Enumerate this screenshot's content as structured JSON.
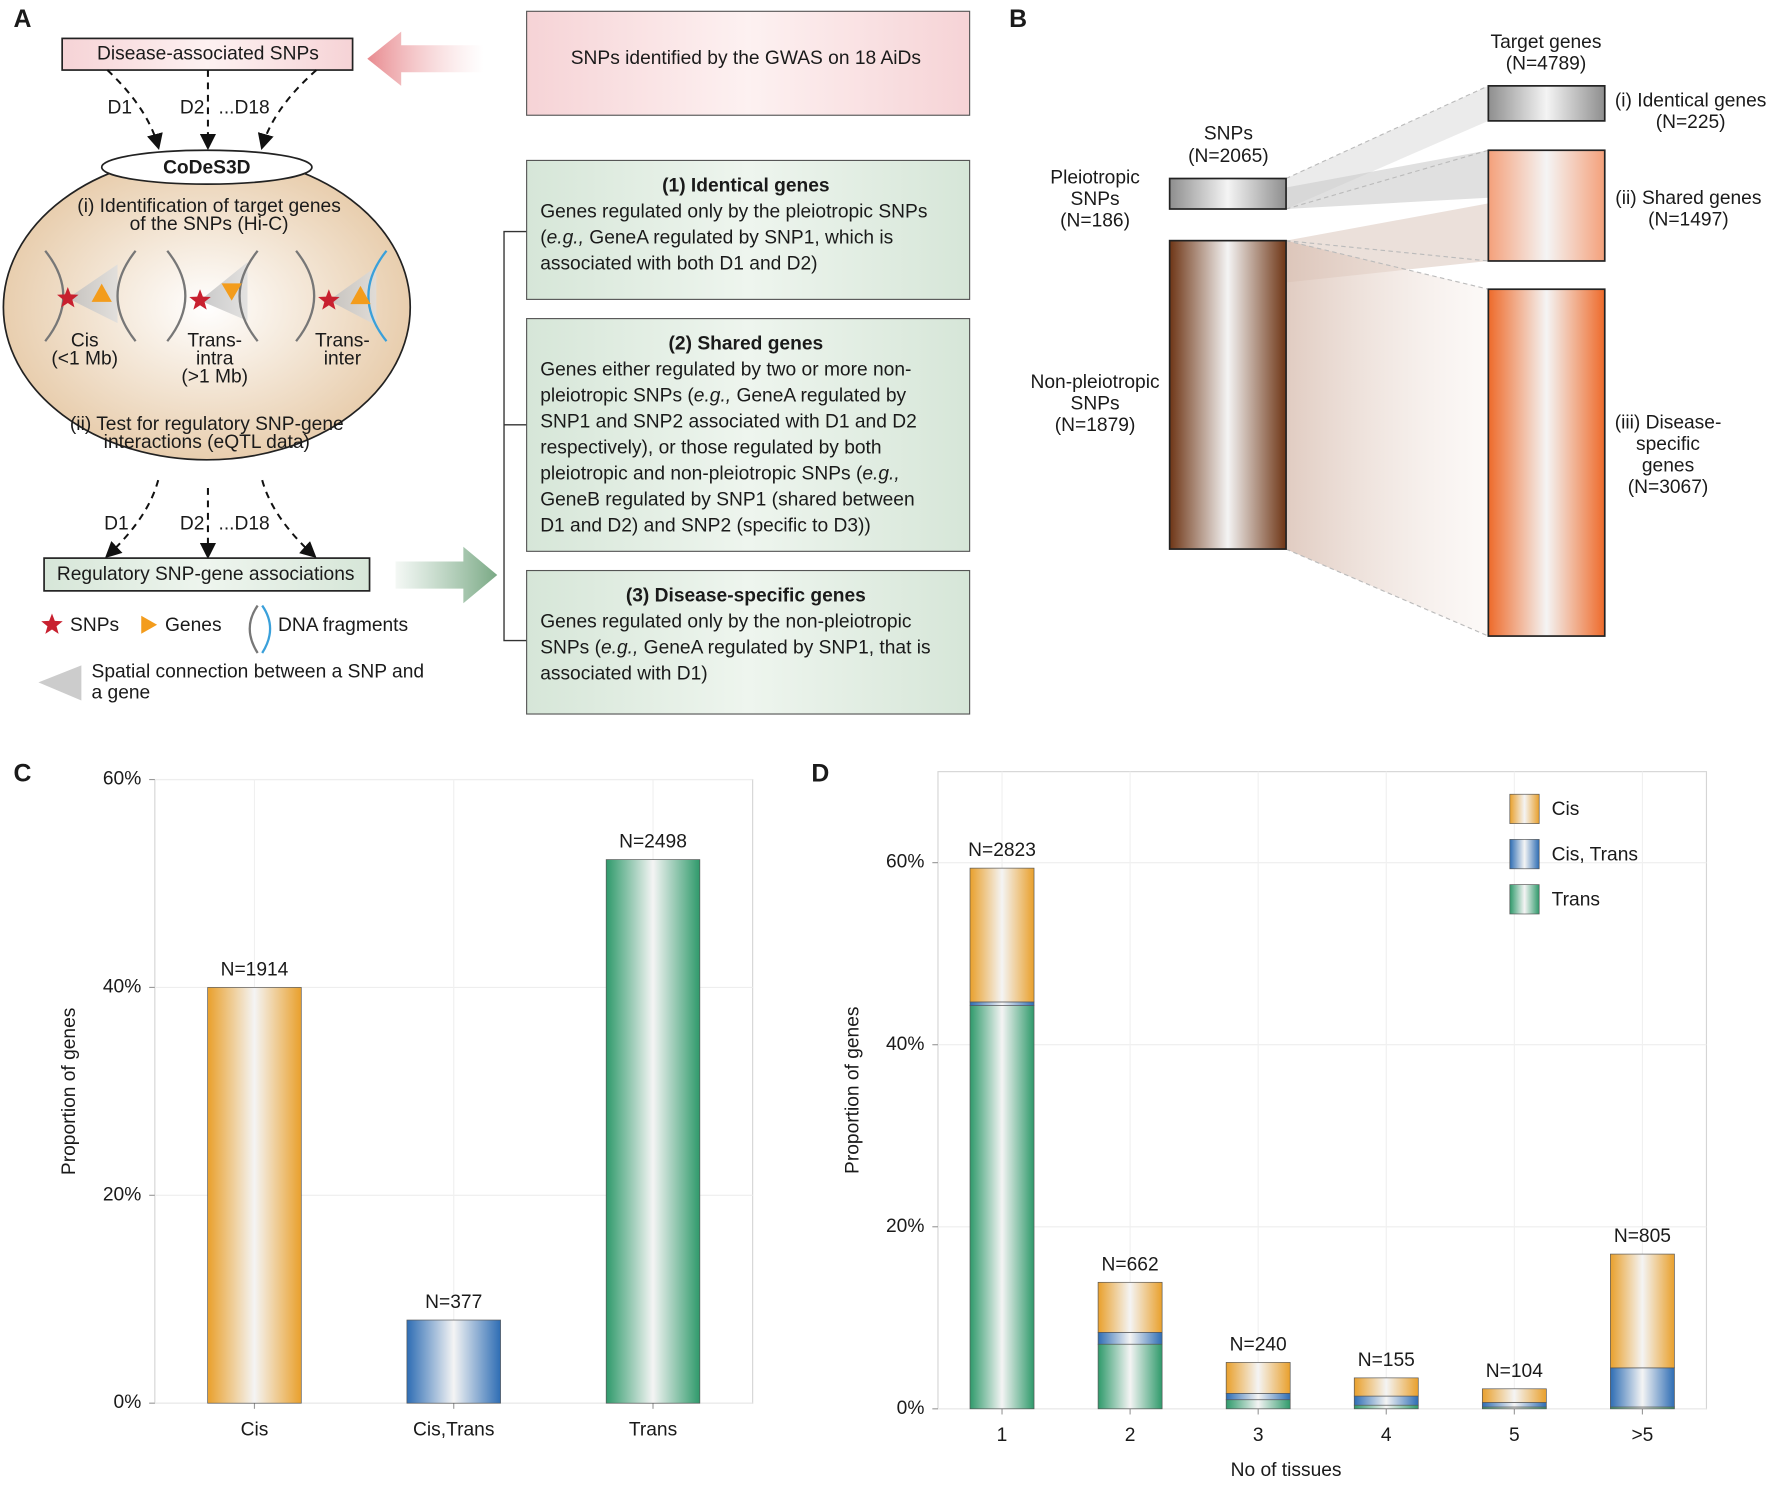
{
  "panel_labels": [
    "A",
    "B",
    "C",
    "D"
  ],
  "panel_a": {
    "disease_snps": "Disease-associated SNPs",
    "gwas": "SNPs identified by the GWAS on 18 AiDs",
    "top_arrows": [
      "D1",
      "D2",
      "...D18"
    ],
    "codes3d": "CoDeS3D",
    "step_i": [
      "(i) Identification of target genes",
      "of the SNPs (Hi-C)"
    ],
    "cis": [
      "Cis",
      "(<1 Mb)"
    ],
    "trans_intra": [
      "Trans-",
      "intra",
      "(>1 Mb)"
    ],
    "trans_inter": [
      "Trans-",
      "inter"
    ],
    "step_ii": [
      "(ii) Test for regulatory SNP-gene",
      "interactions (eQTL data)"
    ],
    "bottom_arrows": [
      "D1",
      "D2",
      "...D18"
    ],
    "associations": "Regulatory SNP-gene associations",
    "legend": {
      "snps": "SNPs",
      "genes": "Genes",
      "fragments": "DNA fragments",
      "connection": [
        "Spatial connection between a SNP and",
        "a gene"
      ]
    },
    "boxes": [
      {
        "title": "(1) Identical genes",
        "lines": [
          [
            "Genes regulated only by the pleiotropic SNPs"
          ],
          [
            "(",
            "e.g.,",
            " GeneA regulated by SNP1, which is"
          ],
          [
            "associated with both D1 and D2)"
          ]
        ]
      },
      {
        "title": "(2) Shared genes",
        "lines": [
          [
            "Genes either regulated by two or more non-"
          ],
          [
            "pleiotropic SNPs (",
            "e.g.,",
            " GeneA regulated by"
          ],
          [
            "SNP1 and SNP2 associated with D1 and D2"
          ],
          [
            "respectively), or those regulated by both"
          ],
          [
            "pleiotropic and non-pleiotropic SNPs (",
            "e.g.,"
          ],
          [
            "GeneB regulated by SNP1 (shared between"
          ],
          [
            "D1 and D2) and SNP2 (specific to D3))"
          ]
        ]
      },
      {
        "title": "(3) Disease-specific genes",
        "lines": [
          [
            "Genes regulated only by the non-pleiotropic"
          ],
          [
            "SNPs (",
            "e.g.,",
            " GeneA regulated by SNP1, that is"
          ],
          [
            "associated with D1)"
          ]
        ]
      }
    ]
  },
  "panel_b": {
    "snps": [
      "SNPs",
      "(N=2065)"
    ],
    "pleiotropic": [
      "Pleiotropic",
      "SNPs",
      "(N=186)"
    ],
    "non_pleiotropic": [
      "Non-pleiotropic",
      "SNPs",
      "(N=1879)"
    ],
    "targets": [
      "Target genes",
      "(N=4789)"
    ],
    "identical": [
      "(i) Identical genes",
      "(N=225)"
    ],
    "shared": [
      "(ii) Shared genes",
      "(N=1497)"
    ],
    "specific": [
      "(iii) Disease-",
      "specific",
      "genes",
      "(N=3067)"
    ]
  },
  "chart_data": [
    {
      "type": "bar",
      "ylabel": "Proportion of genes",
      "categories": [
        "Cis",
        "Cis,Trans",
        "Trans"
      ],
      "values": [
        40,
        8,
        52.3
      ],
      "annotations": [
        "N=1914",
        "N=377",
        "N=2498"
      ],
      "colors": [
        "#e9a02c",
        "#2e6db4",
        "#2f9a6b"
      ],
      "ylim": [
        0,
        60
      ],
      "yticks": [
        {
          "value": 0,
          "label": "0%"
        },
        {
          "value": 20,
          "label": "20%"
        },
        {
          "value": 40,
          "label": "40%"
        },
        {
          "value": 60,
          "label": "60%"
        }
      ],
      "grid": true
    },
    {
      "type": "stacked_bar",
      "ylabel": "Proportion of genes",
      "xlabel": "No of tissues",
      "categories": [
        "1",
        "2",
        "3",
        "4",
        "5",
        ">5"
      ],
      "series": [
        {
          "name": "Cis",
          "color": "#e9a02c",
          "values": [
            14.7,
            5.5,
            3.4,
            2.0,
            1.5,
            12.5
          ]
        },
        {
          "name": "Cis, Trans",
          "color": "#2e6db4",
          "values": [
            0.4,
            1.3,
            0.7,
            1.0,
            0.5,
            4.3
          ]
        },
        {
          "name": "Trans",
          "color": "#2f9a6b",
          "values": [
            44.3,
            7.1,
            1.0,
            0.4,
            0.2,
            0.2
          ]
        }
      ],
      "annotations": [
        "N=2823",
        "N=662",
        "N=240",
        "N=155",
        "N=104",
        "N=805"
      ],
      "ylim": [
        0,
        70
      ],
      "yticks": [
        {
          "value": 0,
          "label": "0%"
        },
        {
          "value": 20,
          "label": "20%"
        },
        {
          "value": 40,
          "label": "40%"
        },
        {
          "value": 60,
          "label": "60%"
        }
      ],
      "grid": true,
      "legend": "top-right"
    }
  ]
}
